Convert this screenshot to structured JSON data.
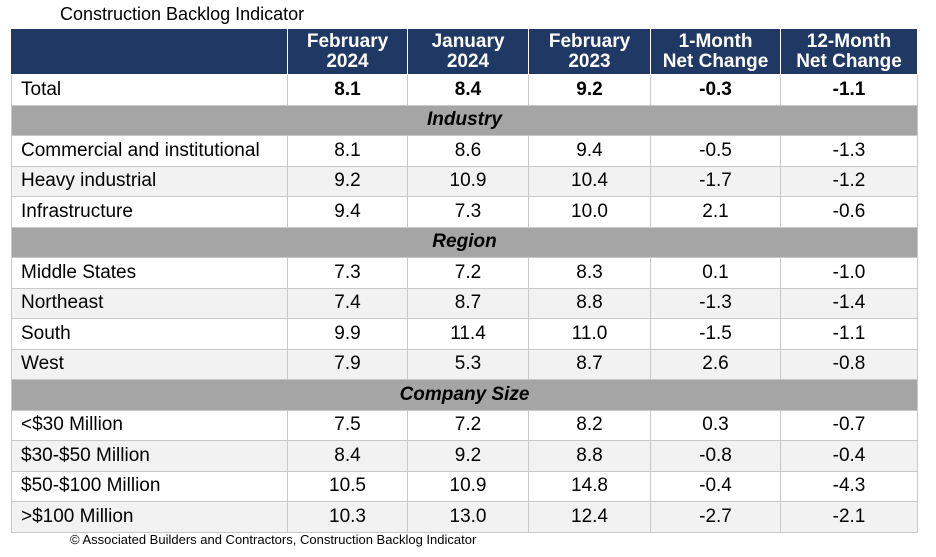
{
  "title": "Construction Backlog Indicator",
  "columns": [
    [
      "February",
      "2024"
    ],
    [
      "January",
      "2024"
    ],
    [
      "February",
      "2023"
    ],
    [
      "1-Month",
      "Net Change"
    ],
    [
      "12-Month",
      "Net Change"
    ]
  ],
  "total": {
    "label": "Total",
    "values": [
      "8.1",
      "8.4",
      "9.2",
      "-0.3",
      "-1.1"
    ]
  },
  "sections": [
    {
      "title": "Industry",
      "rows": [
        {
          "label": "Commercial and institutional",
          "values": [
            "8.1",
            "8.6",
            "9.4",
            "-0.5",
            "-1.3"
          ]
        },
        {
          "label": "Heavy industrial",
          "values": [
            "9.2",
            "10.9",
            "10.4",
            "-1.7",
            "-1.2"
          ]
        },
        {
          "label": "Infrastructure",
          "values": [
            "9.4",
            "7.3",
            "10.0",
            "2.1",
            "-0.6"
          ]
        }
      ]
    },
    {
      "title": "Region",
      "rows": [
        {
          "label": "Middle States",
          "values": [
            "7.3",
            "7.2",
            "8.3",
            "0.1",
            "-1.0"
          ]
        },
        {
          "label": "Northeast",
          "values": [
            "7.4",
            "8.7",
            "8.8",
            "-1.3",
            "-1.4"
          ]
        },
        {
          "label": "South",
          "values": [
            "9.9",
            "11.4",
            "11.0",
            "-1.5",
            "-1.1"
          ]
        },
        {
          "label": "West",
          "values": [
            "7.9",
            "5.3",
            "8.7",
            "2.6",
            "-0.8"
          ]
        }
      ]
    },
    {
      "title": "Company Size",
      "rows": [
        {
          "label": "<$30 Million",
          "values": [
            "7.5",
            "7.2",
            "8.2",
            "0.3",
            "-0.7"
          ]
        },
        {
          "label": "$30-$50 Million",
          "values": [
            "8.4",
            "9.2",
            "8.8",
            "-0.8",
            "-0.4"
          ]
        },
        {
          "label": "$50-$100 Million",
          "values": [
            "10.5",
            "10.9",
            "14.8",
            "-0.4",
            "-4.3"
          ]
        },
        {
          "label": ">$100 Million",
          "values": [
            "10.3",
            "13.0",
            "12.4",
            "-2.7",
            "-2.1"
          ]
        }
      ]
    }
  ],
  "footer": "© Associated Builders and Contractors, Construction Backlog Indicator"
}
